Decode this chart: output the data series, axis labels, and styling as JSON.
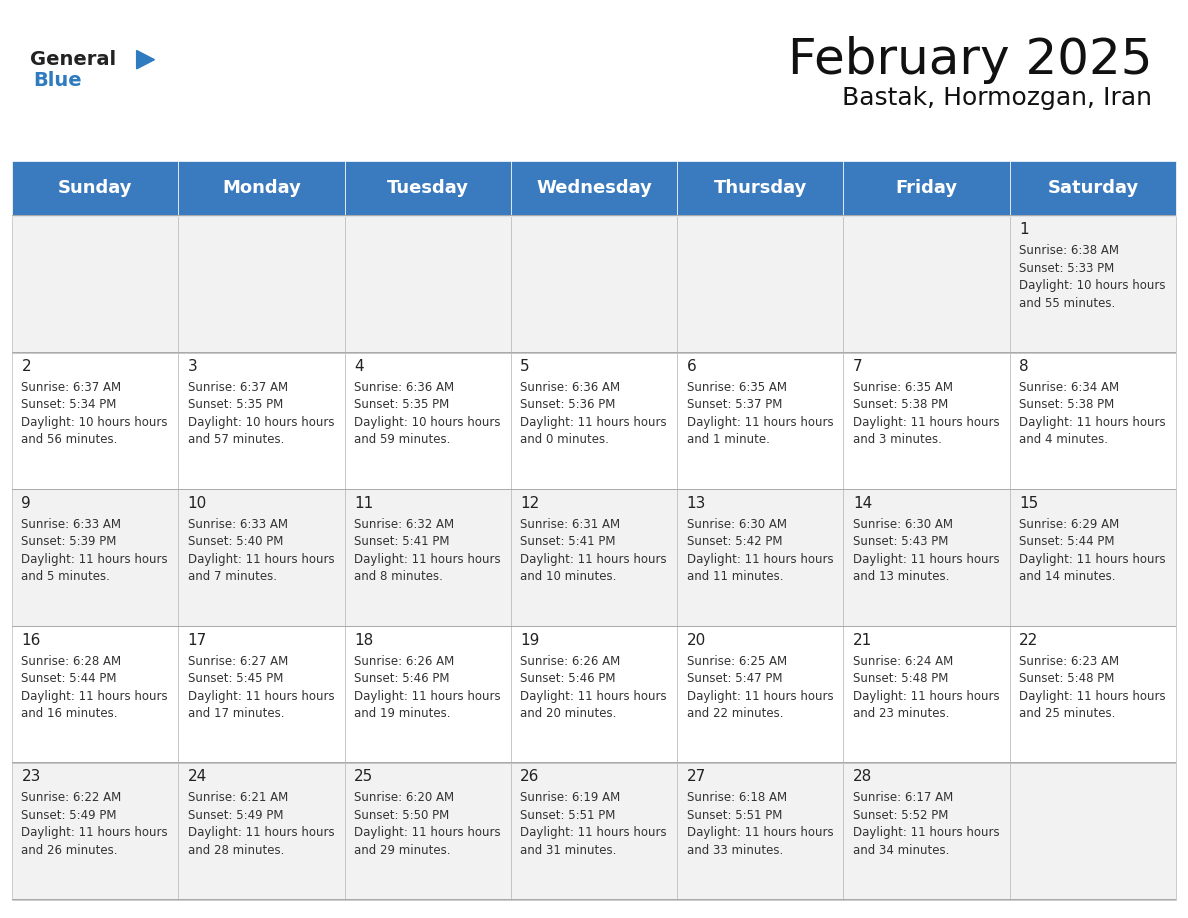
{
  "title": "February 2025",
  "subtitle": "Bastak, Hormozgan, Iran",
  "header_color": "#3a7abf",
  "header_text_color": "#ffffff",
  "cell_bg_even": "#f2f2f2",
  "cell_bg_odd": "#ffffff",
  "day_names": [
    "Sunday",
    "Monday",
    "Tuesday",
    "Wednesday",
    "Thursday",
    "Friday",
    "Saturday"
  ],
  "title_fontsize": 36,
  "subtitle_fontsize": 18,
  "header_fontsize": 13,
  "day_num_fontsize": 11,
  "info_fontsize": 8.5,
  "logo_general_color": "#222222",
  "logo_blue_color": "#2e7bbf",
  "calendar": [
    [
      null,
      null,
      null,
      null,
      null,
      null,
      {
        "day": 1,
        "sunrise": "6:38 AM",
        "sunset": "5:33 PM",
        "daylight": "10 hours and 55 minutes."
      }
    ],
    [
      {
        "day": 2,
        "sunrise": "6:37 AM",
        "sunset": "5:34 PM",
        "daylight": "10 hours and 56 minutes."
      },
      {
        "day": 3,
        "sunrise": "6:37 AM",
        "sunset": "5:35 PM",
        "daylight": "10 hours and 57 minutes."
      },
      {
        "day": 4,
        "sunrise": "6:36 AM",
        "sunset": "5:35 PM",
        "daylight": "10 hours and 59 minutes."
      },
      {
        "day": 5,
        "sunrise": "6:36 AM",
        "sunset": "5:36 PM",
        "daylight": "11 hours and 0 minutes."
      },
      {
        "day": 6,
        "sunrise": "6:35 AM",
        "sunset": "5:37 PM",
        "daylight": "11 hours and 1 minute."
      },
      {
        "day": 7,
        "sunrise": "6:35 AM",
        "sunset": "5:38 PM",
        "daylight": "11 hours and 3 minutes."
      },
      {
        "day": 8,
        "sunrise": "6:34 AM",
        "sunset": "5:38 PM",
        "daylight": "11 hours and 4 minutes."
      }
    ],
    [
      {
        "day": 9,
        "sunrise": "6:33 AM",
        "sunset": "5:39 PM",
        "daylight": "11 hours and 5 minutes."
      },
      {
        "day": 10,
        "sunrise": "6:33 AM",
        "sunset": "5:40 PM",
        "daylight": "11 hours and 7 minutes."
      },
      {
        "day": 11,
        "sunrise": "6:32 AM",
        "sunset": "5:41 PM",
        "daylight": "11 hours and 8 minutes."
      },
      {
        "day": 12,
        "sunrise": "6:31 AM",
        "sunset": "5:41 PM",
        "daylight": "11 hours and 10 minutes."
      },
      {
        "day": 13,
        "sunrise": "6:30 AM",
        "sunset": "5:42 PM",
        "daylight": "11 hours and 11 minutes."
      },
      {
        "day": 14,
        "sunrise": "6:30 AM",
        "sunset": "5:43 PM",
        "daylight": "11 hours and 13 minutes."
      },
      {
        "day": 15,
        "sunrise": "6:29 AM",
        "sunset": "5:44 PM",
        "daylight": "11 hours and 14 minutes."
      }
    ],
    [
      {
        "day": 16,
        "sunrise": "6:28 AM",
        "sunset": "5:44 PM",
        "daylight": "11 hours and 16 minutes."
      },
      {
        "day": 17,
        "sunrise": "6:27 AM",
        "sunset": "5:45 PM",
        "daylight": "11 hours and 17 minutes."
      },
      {
        "day": 18,
        "sunrise": "6:26 AM",
        "sunset": "5:46 PM",
        "daylight": "11 hours and 19 minutes."
      },
      {
        "day": 19,
        "sunrise": "6:26 AM",
        "sunset": "5:46 PM",
        "daylight": "11 hours and 20 minutes."
      },
      {
        "day": 20,
        "sunrise": "6:25 AM",
        "sunset": "5:47 PM",
        "daylight": "11 hours and 22 minutes."
      },
      {
        "day": 21,
        "sunrise": "6:24 AM",
        "sunset": "5:48 PM",
        "daylight": "11 hours and 23 minutes."
      },
      {
        "day": 22,
        "sunrise": "6:23 AM",
        "sunset": "5:48 PM",
        "daylight": "11 hours and 25 minutes."
      }
    ],
    [
      {
        "day": 23,
        "sunrise": "6:22 AM",
        "sunset": "5:49 PM",
        "daylight": "11 hours and 26 minutes."
      },
      {
        "day": 24,
        "sunrise": "6:21 AM",
        "sunset": "5:49 PM",
        "daylight": "11 hours and 28 minutes."
      },
      {
        "day": 25,
        "sunrise": "6:20 AM",
        "sunset": "5:50 PM",
        "daylight": "11 hours and 29 minutes."
      },
      {
        "day": 26,
        "sunrise": "6:19 AM",
        "sunset": "5:51 PM",
        "daylight": "11 hours and 31 minutes."
      },
      {
        "day": 27,
        "sunrise": "6:18 AM",
        "sunset": "5:51 PM",
        "daylight": "11 hours and 33 minutes."
      },
      {
        "day": 28,
        "sunrise": "6:17 AM",
        "sunset": "5:52 PM",
        "daylight": "11 hours and 34 minutes."
      },
      null
    ]
  ]
}
